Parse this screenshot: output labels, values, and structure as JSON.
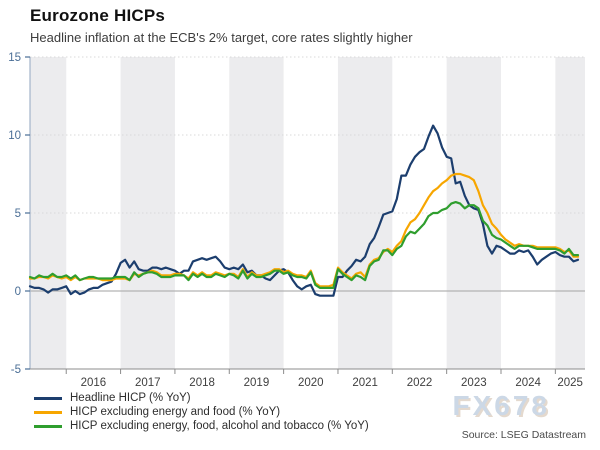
{
  "header": {
    "title": "Eurozone HICPs",
    "subtitle": "Headline inflation at the ECB's 2% target, core rates slightly higher"
  },
  "watermark": "FX678",
  "source": "Source: LSEG Datastream",
  "chart_data": {
    "type": "line",
    "title": "Eurozone HICPs",
    "x_start": "2015-05",
    "x_end": "2025-06",
    "x_unit": "month",
    "x_tick_years": [
      2016,
      2017,
      2018,
      2019,
      2020,
      2021,
      2022,
      2023,
      2024,
      2025
    ],
    "shaded_years": [
      2015,
      2017,
      2019,
      2021,
      2023,
      2025
    ],
    "ylim": [
      -5,
      15
    ],
    "yticks": [
      -5,
      0,
      5,
      10,
      15
    ],
    "grid": "dotted horizontal gridlines at 5/10/15, solid gray line at 0, alternating yearly background bands",
    "legend_position": "bottom-left",
    "colors": {
      "band": "#ececee",
      "dotted_grid": "#d9d9d9",
      "zero_line": "#b3b3b3",
      "y_axis": "#a3b4ca",
      "y_tick_label": "#4a6e96",
      "x_axis": "#8c8c8c",
      "x_tick_label": "#3f3f3f"
    },
    "series": [
      {
        "name": "Headline HICP (% YoY)",
        "color": "#1c3e6e",
        "values": [
          0.3,
          0.2,
          0.2,
          0.1,
          -0.1,
          0.1,
          0.1,
          0.2,
          0.3,
          -0.2,
          0.0,
          -0.2,
          -0.1,
          0.1,
          0.2,
          0.2,
          0.4,
          0.5,
          0.6,
          1.1,
          1.8,
          2.0,
          1.5,
          1.9,
          1.4,
          1.3,
          1.3,
          1.5,
          1.5,
          1.4,
          1.5,
          1.4,
          1.3,
          1.1,
          1.3,
          1.3,
          1.9,
          2.0,
          2.1,
          2.0,
          2.1,
          2.2,
          1.9,
          1.5,
          1.4,
          1.5,
          1.4,
          1.7,
          1.2,
          1.3,
          1.0,
          1.0,
          0.8,
          0.7,
          1.0,
          1.3,
          1.4,
          1.2,
          0.7,
          0.3,
          0.1,
          0.3,
          0.4,
          -0.2,
          -0.3,
          -0.3,
          -0.3,
          -0.3,
          0.9,
          0.9,
          1.3,
          1.6,
          2.0,
          1.9,
          2.2,
          3.0,
          3.4,
          4.1,
          4.9,
          5.0,
          5.1,
          5.9,
          7.4,
          7.4,
          8.1,
          8.6,
          8.9,
          9.1,
          9.9,
          10.6,
          10.1,
          9.2,
          8.6,
          8.5,
          6.9,
          7.0,
          6.1,
          5.5,
          5.3,
          5.2,
          4.3,
          2.9,
          2.4,
          2.9,
          2.8,
          2.6,
          2.4,
          2.4,
          2.6,
          2.5,
          2.6,
          2.2,
          1.7,
          2.0,
          2.2,
          2.4,
          2.5,
          2.3,
          2.2,
          2.2,
          1.9,
          2.0
        ]
      },
      {
        "name": "HICP excluding energy and food (% YoY)",
        "color": "#f7a600",
        "values": [
          0.8,
          0.8,
          0.9,
          0.9,
          0.8,
          1.0,
          0.9,
          0.8,
          0.9,
          0.7,
          0.9,
          0.7,
          0.8,
          0.8,
          0.8,
          0.8,
          0.7,
          0.7,
          0.7,
          0.8,
          0.8,
          0.8,
          0.7,
          1.1,
          1.0,
          1.1,
          1.2,
          1.3,
          1.2,
          1.0,
          1.0,
          1.0,
          1.1,
          1.1,
          1.0,
          0.8,
          1.2,
          1.0,
          1.2,
          1.0,
          1.0,
          1.2,
          1.1,
          1.0,
          1.1,
          1.1,
          0.9,
          1.4,
          0.9,
          1.2,
          1.0,
          1.0,
          1.1,
          1.2,
          1.4,
          1.4,
          1.2,
          1.3,
          1.1,
          1.0,
          1.0,
          0.9,
          1.3,
          0.5,
          0.3,
          0.3,
          0.3,
          0.4,
          1.5,
          1.2,
          1.0,
          0.8,
          1.1,
          1.2,
          0.9,
          1.7,
          2.0,
          2.1,
          2.5,
          2.7,
          2.5,
          2.9,
          3.2,
          3.9,
          4.4,
          4.6,
          5.0,
          5.5,
          6.0,
          6.4,
          6.6,
          6.9,
          7.1,
          7.4,
          7.5,
          7.5,
          7.4,
          7.3,
          7.1,
          6.4,
          5.5,
          5.0,
          4.3,
          4.0,
          3.6,
          3.3,
          3.1,
          2.9,
          3.0,
          2.9,
          2.9,
          2.9,
          2.8,
          2.8,
          2.8,
          2.8,
          2.8,
          2.7,
          2.5,
          2.6,
          2.2,
          2.2
        ]
      },
      {
        "name": "HICP excluding energy, food, alcohol and tobacco (% YoY)",
        "color": "#2f9e2e",
        "values": [
          0.9,
          0.8,
          1.0,
          0.9,
          0.9,
          1.1,
          0.9,
          0.9,
          1.0,
          0.8,
          1.0,
          0.7,
          0.8,
          0.9,
          0.9,
          0.8,
          0.8,
          0.8,
          0.8,
          0.9,
          0.9,
          0.9,
          0.7,
          1.2,
          0.9,
          1.1,
          1.2,
          1.2,
          1.1,
          0.9,
          0.9,
          0.9,
          1.0,
          1.0,
          1.0,
          0.7,
          1.1,
          0.9,
          1.1,
          0.9,
          0.9,
          1.1,
          1.0,
          0.9,
          1.1,
          1.0,
          0.8,
          1.3,
          0.8,
          1.1,
          0.9,
          0.9,
          1.0,
          1.1,
          1.3,
          1.3,
          1.1,
          1.2,
          1.0,
          0.9,
          0.9,
          0.8,
          1.2,
          0.4,
          0.2,
          0.2,
          0.2,
          0.2,
          1.4,
          1.1,
          0.9,
          0.7,
          1.0,
          0.9,
          0.7,
          1.6,
          1.9,
          2.0,
          2.6,
          2.6,
          2.3,
          2.7,
          2.9,
          3.5,
          3.8,
          3.7,
          4.0,
          4.3,
          4.8,
          5.0,
          5.0,
          5.2,
          5.3,
          5.6,
          5.7,
          5.6,
          5.3,
          5.5,
          5.5,
          5.3,
          4.5,
          4.2,
          3.6,
          3.4,
          3.3,
          3.1,
          2.9,
          2.7,
          2.9,
          2.9,
          2.9,
          2.8,
          2.7,
          2.7,
          2.7,
          2.7,
          2.7,
          2.6,
          2.4,
          2.7,
          2.3,
          2.3
        ]
      }
    ]
  }
}
